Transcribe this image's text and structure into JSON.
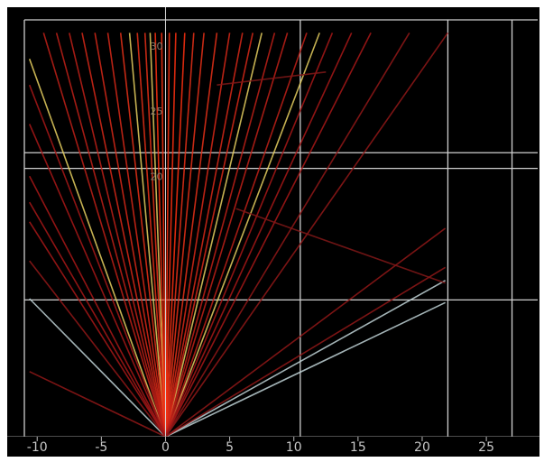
{
  "chart_data": {
    "type": "line",
    "title": "",
    "xlabel": "",
    "ylabel": "",
    "xlim": [
      -11,
      29
    ],
    "ylim": [
      0,
      32
    ],
    "origin": [
      0,
      0
    ],
    "x_ticks": [
      {
        "value": -10,
        "label": "-10"
      },
      {
        "value": -5,
        "label": "-5"
      },
      {
        "value": 0,
        "label": "0"
      },
      {
        "value": 5,
        "label": "5"
      },
      {
        "value": 10,
        "label": "10"
      },
      {
        "value": 15,
        "label": "15"
      },
      {
        "value": 20,
        "label": "20"
      },
      {
        "value": 25,
        "label": "25"
      }
    ],
    "y_ticks": [
      {
        "value": 20,
        "label": "20"
      },
      {
        "value": 25,
        "label": "25"
      },
      {
        "value": 30,
        "label": "30"
      }
    ],
    "grid_vertical": [
      10.5,
      22,
      27
    ],
    "grid_horizontal": [
      10.5,
      20.6,
      21.8
    ],
    "grid": true,
    "legend": "none",
    "background_color": "#000000",
    "grid_color": "#cfcfcf",
    "series": [
      {
        "color": "#c0d2d6",
        "points": [
          [
            0,
            0
          ],
          [
            -10.6,
            10.6
          ]
        ]
      },
      {
        "color": "#c0d2d6",
        "points": [
          [
            0,
            0
          ],
          [
            21.8,
            12
          ]
        ]
      },
      {
        "color": "#c0d2d6",
        "points": [
          [
            0,
            0
          ],
          [
            21.8,
            10.3
          ]
        ]
      },
      {
        "color": "#e8d060",
        "points": [
          [
            0,
            0
          ],
          [
            -10.6,
            29
          ]
        ]
      },
      {
        "color": "#e8d060",
        "points": [
          [
            0,
            0
          ],
          [
            -2.8,
            31
          ]
        ]
      },
      {
        "color": "#e8d060",
        "points": [
          [
            0,
            0
          ],
          [
            -1.2,
            31
          ]
        ]
      },
      {
        "color": "#e8d060",
        "points": [
          [
            0,
            0
          ],
          [
            7.5,
            31
          ]
        ]
      },
      {
        "color": "#e8d060",
        "points": [
          [
            0,
            0
          ],
          [
            12,
            31
          ]
        ]
      },
      {
        "color": "#ff3010",
        "points": [
          [
            0,
            0
          ],
          [
            -0.3,
            31
          ]
        ]
      },
      {
        "color": "#ff3010",
        "points": [
          [
            0,
            0
          ],
          [
            0.3,
            31
          ]
        ]
      },
      {
        "color": "#ff3010",
        "points": [
          [
            0,
            0
          ],
          [
            0.8,
            31
          ]
        ]
      },
      {
        "color": "#ff3010",
        "points": [
          [
            0,
            0
          ],
          [
            -0.8,
            31
          ]
        ]
      },
      {
        "color": "#ff3010",
        "points": [
          [
            0,
            0
          ],
          [
            1.5,
            31
          ]
        ]
      },
      {
        "color": "#e83018",
        "points": [
          [
            0,
            0
          ],
          [
            -1.6,
            31
          ]
        ]
      },
      {
        "color": "#e83018",
        "points": [
          [
            0,
            0
          ],
          [
            -2.2,
            31
          ]
        ]
      },
      {
        "color": "#e83018",
        "points": [
          [
            0,
            0
          ],
          [
            2.2,
            31
          ]
        ]
      },
      {
        "color": "#e83018",
        "points": [
          [
            0,
            0
          ],
          [
            3,
            31
          ]
        ]
      },
      {
        "color": "#e83018",
        "points": [
          [
            0,
            0
          ],
          [
            -3.5,
            31
          ]
        ]
      },
      {
        "color": "#e83018",
        "points": [
          [
            0,
            0
          ],
          [
            4,
            31
          ]
        ]
      },
      {
        "color": "#d82818",
        "points": [
          [
            0,
            0
          ],
          [
            -4.5,
            31
          ]
        ]
      },
      {
        "color": "#d82818",
        "points": [
          [
            0,
            0
          ],
          [
            -5.5,
            31
          ]
        ]
      },
      {
        "color": "#d82818",
        "points": [
          [
            0,
            0
          ],
          [
            5,
            31
          ]
        ]
      },
      {
        "color": "#d82818",
        "points": [
          [
            0,
            0
          ],
          [
            6,
            31
          ]
        ]
      },
      {
        "color": "#d82818",
        "points": [
          [
            0,
            0
          ],
          [
            -6.5,
            31
          ]
        ]
      },
      {
        "color": "#d82818",
        "points": [
          [
            0,
            0
          ],
          [
            6.8,
            31
          ]
        ]
      },
      {
        "color": "#c02018",
        "points": [
          [
            0,
            0
          ],
          [
            -7.5,
            31
          ]
        ]
      },
      {
        "color": "#c02018",
        "points": [
          [
            0,
            0
          ],
          [
            8.5,
            31
          ]
        ]
      },
      {
        "color": "#c02018",
        "points": [
          [
            0,
            0
          ],
          [
            -8.5,
            31
          ]
        ]
      },
      {
        "color": "#c02018",
        "points": [
          [
            0,
            0
          ],
          [
            9.5,
            31
          ]
        ]
      },
      {
        "color": "#c02018",
        "points": [
          [
            0,
            0
          ],
          [
            -9.5,
            31
          ]
        ]
      },
      {
        "color": "#c02018",
        "points": [
          [
            0,
            0
          ],
          [
            11,
            31
          ]
        ]
      },
      {
        "color": "#a81818",
        "points": [
          [
            0,
            0
          ],
          [
            13,
            31
          ]
        ]
      },
      {
        "color": "#a81818",
        "points": [
          [
            0,
            0
          ],
          [
            14.5,
            31
          ]
        ]
      },
      {
        "color": "#a81818",
        "points": [
          [
            0,
            0
          ],
          [
            16,
            31
          ]
        ]
      },
      {
        "color": "#a81818",
        "points": [
          [
            0,
            0
          ],
          [
            -10.6,
            27
          ]
        ]
      },
      {
        "color": "#a81818",
        "points": [
          [
            0,
            0
          ],
          [
            -10.6,
            24
          ]
        ]
      },
      {
        "color": "#a81818",
        "points": [
          [
            0,
            0
          ],
          [
            -10.6,
            20
          ]
        ]
      },
      {
        "color": "#a81818",
        "points": [
          [
            0,
            0
          ],
          [
            -10.6,
            18
          ]
        ]
      },
      {
        "color": "#a81818",
        "points": [
          [
            0,
            0
          ],
          [
            -10.6,
            16.5
          ]
        ]
      },
      {
        "color": "#901818",
        "points": [
          [
            0,
            0
          ],
          [
            -10.6,
            5
          ]
        ]
      },
      {
        "color": "#901818",
        "points": [
          [
            0,
            0
          ],
          [
            21.8,
            16
          ]
        ]
      },
      {
        "color": "#901818",
        "points": [
          [
            0,
            0
          ],
          [
            21.8,
            13
          ]
        ]
      },
      {
        "color": "#901818",
        "points": [
          [
            0,
            0
          ],
          [
            22,
            31
          ]
        ]
      },
      {
        "color": "#901818",
        "points": [
          [
            0,
            0
          ],
          [
            19,
            31
          ]
        ]
      },
      {
        "color": "#901818",
        "points": [
          [
            0,
            0
          ],
          [
            -10.6,
            13.5
          ]
        ]
      },
      {
        "color": "#801818",
        "points": [
          [
            5.5,
            17.5
          ],
          [
            21.8,
            11.8
          ]
        ]
      },
      {
        "color": "#801818",
        "points": [
          [
            4,
            27
          ],
          [
            12.5,
            28
          ]
        ]
      }
    ]
  }
}
